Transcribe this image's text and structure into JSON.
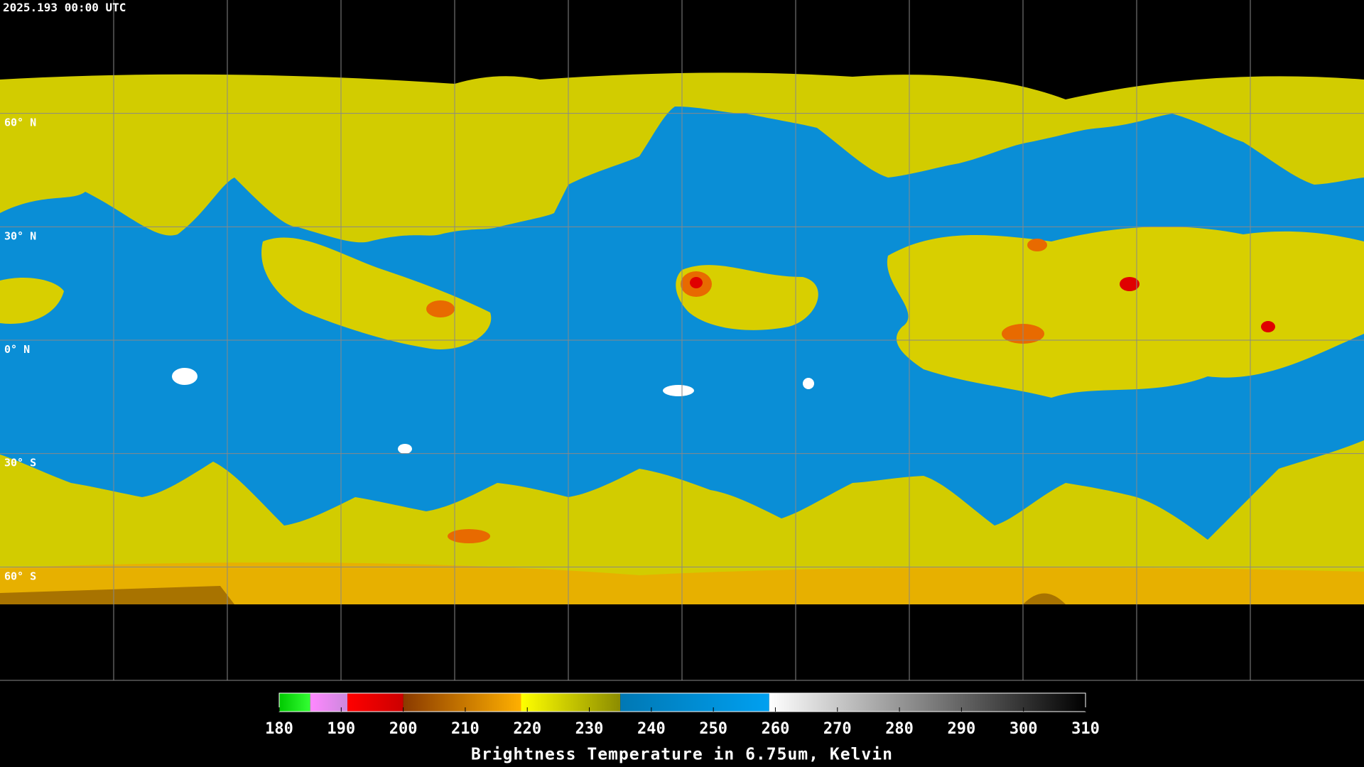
{
  "header": {
    "title": "2025.193 00:00 UTC"
  },
  "map": {
    "ylim": [
      -90,
      90
    ],
    "yticks": [
      {
        "value": 60,
        "label": "60° N"
      },
      {
        "value": 30,
        "label": "30° N"
      },
      {
        "value": 0,
        "label": "0° N"
      },
      {
        "value": -30,
        "label": "30° S"
      },
      {
        "value": -60,
        "label": "60° S"
      }
    ]
  },
  "colorbar": {
    "lim": [
      180,
      310
    ],
    "ticks": [
      180,
      190,
      200,
      210,
      220,
      230,
      240,
      250,
      260,
      270,
      280,
      290,
      300,
      310
    ],
    "label": "Brightness Temperature in 6.75um, Kelvin",
    "segments": [
      {
        "from": 180,
        "to": 185,
        "colors": [
          "#00c800",
          "#33ff33"
        ]
      },
      {
        "from": 185,
        "to": 191,
        "colors": [
          "#ff88ff",
          "#cc88dd"
        ]
      },
      {
        "from": 191,
        "to": 200,
        "colors": [
          "#ff0000",
          "#cc0000"
        ]
      },
      {
        "from": 200,
        "to": 219,
        "colors": [
          "#8a3a00",
          "#ffb000"
        ]
      },
      {
        "from": 219,
        "to": 235,
        "colors": [
          "#ffff00",
          "#8c8c00"
        ]
      },
      {
        "from": 235,
        "to": 259,
        "colors": [
          "#0078b4",
          "#00a0f0"
        ]
      },
      {
        "from": 259,
        "to": 310,
        "colors": [
          "#ffffff",
          "#000000"
        ]
      }
    ]
  }
}
